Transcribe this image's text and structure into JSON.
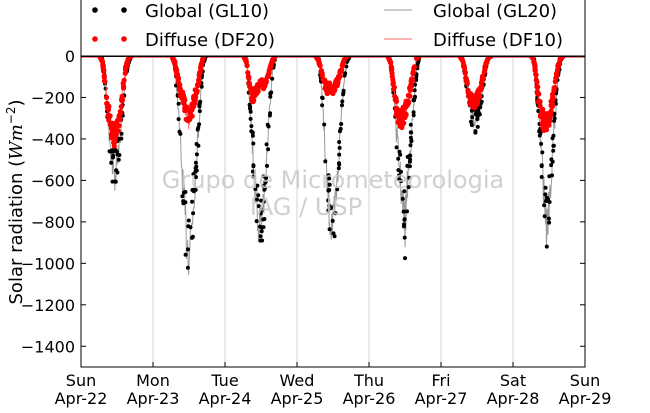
{
  "chart_data": {
    "type": "scatter",
    "title": "",
    "xlabel": "",
    "ylabel_text": "Solar radiation (",
    "ylabel_unit_base": "Wm",
    "ylabel_unit_exp": "−2",
    "ylabel_close": ")",
    "ylim": [
      -1500,
      0
    ],
    "xlim": [
      0,
      7
    ],
    "yticks": [
      0,
      -200,
      -400,
      -600,
      -800,
      -1000,
      -1200,
      -1400
    ],
    "ytick_labels": [
      "0",
      "−200",
      "−400",
      "−600",
      "−800",
      "−1000",
      "−1200",
      "−1400"
    ],
    "xtick_positions": [
      0,
      1,
      2,
      3,
      4,
      5,
      6,
      7
    ],
    "xtick_day": [
      "Sun",
      "Mon",
      "Tue",
      "Wed",
      "Thu",
      "Fri",
      "Sat",
      "Sun"
    ],
    "xtick_date": [
      "Apr-22",
      "Apr-23",
      "Apr-24",
      "Apr-25",
      "Apr-26",
      "Apr-27",
      "Apr-28",
      "Apr-29"
    ],
    "x_unit": "day",
    "grid": "vertical",
    "legend_location": "top",
    "legend": [
      {
        "label": "Global (GL10)",
        "style": "dots",
        "color": "#000000"
      },
      {
        "label": "Global (GL20)",
        "style": "line",
        "color": "#999999"
      },
      {
        "label": "Diffuse (DF20)",
        "style": "dots",
        "color": "#ff0000"
      },
      {
        "label": "Diffuse (DF10)",
        "style": "line",
        "color": "#ff6666"
      }
    ],
    "watermark": [
      "Grupo de Micrometeorologia",
      "IAG / USP"
    ],
    "series": [
      {
        "name": "Global (GL10)",
        "color": "#000000",
        "day_curves": [
          {
            "day": 0,
            "points": [
              [
                0.26,
                0
              ],
              [
                0.3,
                -10
              ],
              [
                0.34,
                -150
              ],
              [
                0.38,
                -320
              ],
              [
                0.42,
                -470
              ],
              [
                0.46,
                -590
              ],
              [
                0.5,
                -520
              ],
              [
                0.54,
                -420
              ],
              [
                0.58,
                -250
              ],
              [
                0.62,
                -90
              ],
              [
                0.66,
                -30
              ],
              [
                0.7,
                0
              ]
            ]
          },
          {
            "day": 1,
            "points": [
              [
                0.26,
                0
              ],
              [
                0.3,
                -40
              ],
              [
                0.34,
                -200
              ],
              [
                0.38,
                -420
              ],
              [
                0.42,
                -650
              ],
              [
                0.46,
                -860
              ],
              [
                0.5,
                -940
              ],
              [
                0.54,
                -800
              ],
              [
                0.58,
                -620
              ],
              [
                0.62,
                -420
              ],
              [
                0.66,
                -200
              ],
              [
                0.7,
                -30
              ],
              [
                0.74,
                0
              ]
            ]
          },
          {
            "day": 2,
            "points": [
              [
                0.26,
                0
              ],
              [
                0.3,
                -20
              ],
              [
                0.34,
                -200
              ],
              [
                0.38,
                -420
              ],
              [
                0.42,
                -650
              ],
              [
                0.46,
                -800
              ],
              [
                0.5,
                -780
              ],
              [
                0.54,
                -700
              ],
              [
                0.58,
                -480
              ],
              [
                0.62,
                -260
              ],
              [
                0.66,
                -80
              ],
              [
                0.7,
                0
              ]
            ]
          },
          {
            "day": 3,
            "points": [
              [
                0.26,
                0
              ],
              [
                0.3,
                -10
              ],
              [
                0.34,
                -140
              ],
              [
                0.38,
                -400
              ],
              [
                0.42,
                -640
              ],
              [
                0.46,
                -780
              ],
              [
                0.5,
                -840
              ],
              [
                0.54,
                -700
              ],
              [
                0.58,
                -500
              ],
              [
                0.62,
                -250
              ],
              [
                0.66,
                -100
              ],
              [
                0.7,
                -20
              ],
              [
                0.74,
                0
              ]
            ]
          },
          {
            "day": 4,
            "points": [
              [
                0.26,
                0
              ],
              [
                0.3,
                -20
              ],
              [
                0.34,
                -160
              ],
              [
                0.38,
                -360
              ],
              [
                0.42,
                -520
              ],
              [
                0.46,
                -700
              ],
              [
                0.5,
                -830
              ],
              [
                0.54,
                -580
              ],
              [
                0.58,
                -420
              ],
              [
                0.62,
                -250
              ],
              [
                0.66,
                -80
              ],
              [
                0.7,
                0
              ]
            ]
          },
          {
            "day": 5,
            "points": [
              [
                0.26,
                0
              ],
              [
                0.3,
                -10
              ],
              [
                0.34,
                -100
              ],
              [
                0.38,
                -200
              ],
              [
                0.42,
                -290
              ],
              [
                0.46,
                -330
              ],
              [
                0.5,
                -300
              ],
              [
                0.54,
                -250
              ],
              [
                0.58,
                -150
              ],
              [
                0.62,
                -60
              ],
              [
                0.66,
                -10
              ],
              [
                0.7,
                0
              ]
            ]
          },
          {
            "day": 6,
            "points": [
              [
                0.26,
                0
              ],
              [
                0.3,
                -20
              ],
              [
                0.34,
                -200
              ],
              [
                0.38,
                -400
              ],
              [
                0.42,
                -600
              ],
              [
                0.46,
                -830
              ],
              [
                0.5,
                -720
              ],
              [
                0.54,
                -520
              ],
              [
                0.58,
                -300
              ],
              [
                0.62,
                -120
              ],
              [
                0.66,
                -20
              ],
              [
                0.7,
                0
              ]
            ]
          }
        ]
      },
      {
        "name": "Diffuse (DF20)",
        "color": "#ff0000",
        "day_curves": [
          {
            "day": 0,
            "points": [
              [
                0.26,
                0
              ],
              [
                0.3,
                -30
              ],
              [
                0.34,
                -150
              ],
              [
                0.38,
                -270
              ],
              [
                0.42,
                -350
              ],
              [
                0.46,
                -390
              ],
              [
                0.5,
                -360
              ],
              [
                0.54,
                -280
              ],
              [
                0.58,
                -170
              ],
              [
                0.62,
                -60
              ],
              [
                0.66,
                -10
              ],
              [
                0.7,
                0
              ]
            ]
          },
          {
            "day": 1,
            "points": [
              [
                0.26,
                0
              ],
              [
                0.3,
                -30
              ],
              [
                0.34,
                -100
              ],
              [
                0.38,
                -170
              ],
              [
                0.42,
                -200
              ],
              [
                0.46,
                -270
              ],
              [
                0.5,
                -320
              ],
              [
                0.54,
                -260
              ],
              [
                0.58,
                -200
              ],
              [
                0.62,
                -140
              ],
              [
                0.66,
                -60
              ],
              [
                0.7,
                0
              ]
            ]
          },
          {
            "day": 2,
            "points": [
              [
                0.26,
                0
              ],
              [
                0.3,
                -30
              ],
              [
                0.34,
                -130
              ],
              [
                0.38,
                -200
              ],
              [
                0.42,
                -170
              ],
              [
                0.46,
                -150
              ],
              [
                0.5,
                -130
              ],
              [
                0.54,
                -140
              ],
              [
                0.58,
                -110
              ],
              [
                0.62,
                -70
              ],
              [
                0.66,
                -20
              ],
              [
                0.7,
                0
              ]
            ]
          },
          {
            "day": 3,
            "points": [
              [
                0.26,
                0
              ],
              [
                0.3,
                -20
              ],
              [
                0.34,
                -80
              ],
              [
                0.38,
                -130
              ],
              [
                0.42,
                -160
              ],
              [
                0.46,
                -150
              ],
              [
                0.5,
                -160
              ],
              [
                0.54,
                -140
              ],
              [
                0.58,
                -110
              ],
              [
                0.62,
                -60
              ],
              [
                0.66,
                -10
              ],
              [
                0.7,
                0
              ]
            ]
          },
          {
            "day": 4,
            "points": [
              [
                0.26,
                0
              ],
              [
                0.3,
                -30
              ],
              [
                0.34,
                -140
              ],
              [
                0.38,
                -250
              ],
              [
                0.42,
                -310
              ],
              [
                0.46,
                -300
              ],
              [
                0.5,
                -270
              ],
              [
                0.54,
                -220
              ],
              [
                0.58,
                -150
              ],
              [
                0.62,
                -70
              ],
              [
                0.66,
                -10
              ],
              [
                0.7,
                0
              ]
            ]
          },
          {
            "day": 5,
            "points": [
              [
                0.26,
                0
              ],
              [
                0.3,
                -20
              ],
              [
                0.34,
                -90
              ],
              [
                0.38,
                -170
              ],
              [
                0.42,
                -220
              ],
              [
                0.46,
                -230
              ],
              [
                0.5,
                -210
              ],
              [
                0.54,
                -170
              ],
              [
                0.58,
                -110
              ],
              [
                0.62,
                -40
              ],
              [
                0.66,
                -5
              ],
              [
                0.7,
                0
              ]
            ]
          },
          {
            "day": 6,
            "points": [
              [
                0.26,
                0
              ],
              [
                0.3,
                -40
              ],
              [
                0.34,
                -160
              ],
              [
                0.38,
                -260
              ],
              [
                0.42,
                -310
              ],
              [
                0.46,
                -330
              ],
              [
                0.5,
                -300
              ],
              [
                0.54,
                -230
              ],
              [
                0.58,
                -140
              ],
              [
                0.62,
                -60
              ],
              [
                0.66,
                -10
              ],
              [
                0.7,
                0
              ]
            ]
          }
        ]
      }
    ]
  }
}
